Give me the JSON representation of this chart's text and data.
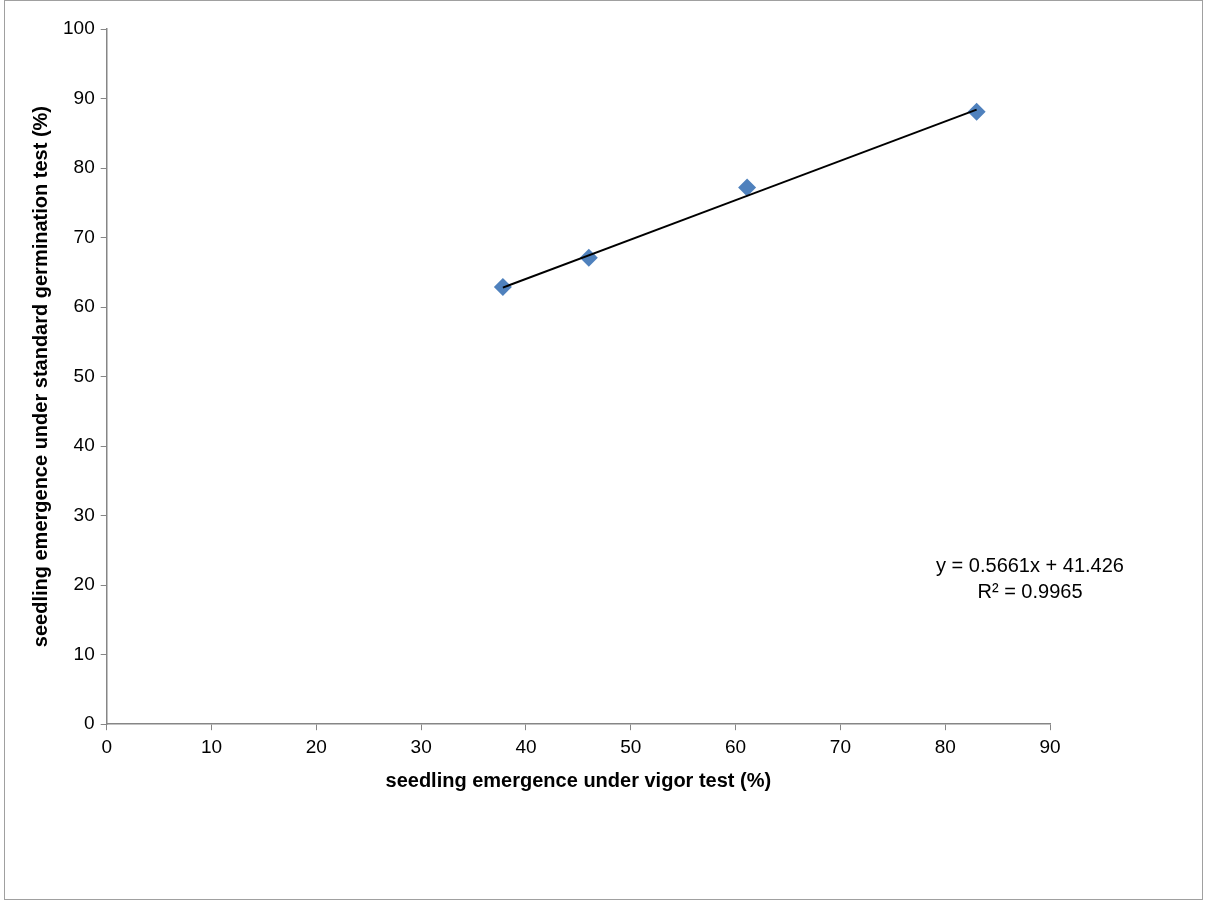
{
  "chart_data": {
    "type": "scatter",
    "xlabel": "seedling emergence under vigor test (%)",
    "ylabel": "seedling emergence under standard germination test (%)",
    "series": [
      {
        "color": "#4f81bd",
        "marker": "diamond",
        "x": [
          37.8,
          46.0,
          61.1,
          83.0
        ],
        "values": [
          62.9,
          67.1,
          77.2,
          88.1
        ]
      },
      {
        "type": "line",
        "color": "#000000",
        "marker": "none",
        "x": [
          37.8,
          83.0
        ],
        "values": [
          62.8,
          88.4
        ]
      }
    ],
    "annotations": [
      "y = 0.5661x + 41.426\nR² = 0.9965"
    ],
    "xlim": [
      0,
      90
    ],
    "xticks": [
      0,
      10,
      20,
      30,
      40,
      50,
      60,
      70,
      80,
      90
    ],
    "ylim": [
      0,
      100
    ],
    "yticks": [
      0,
      10,
      20,
      30,
      40,
      50,
      60,
      70,
      80,
      90,
      100
    ],
    "grid": false,
    "legend": false
  }
}
